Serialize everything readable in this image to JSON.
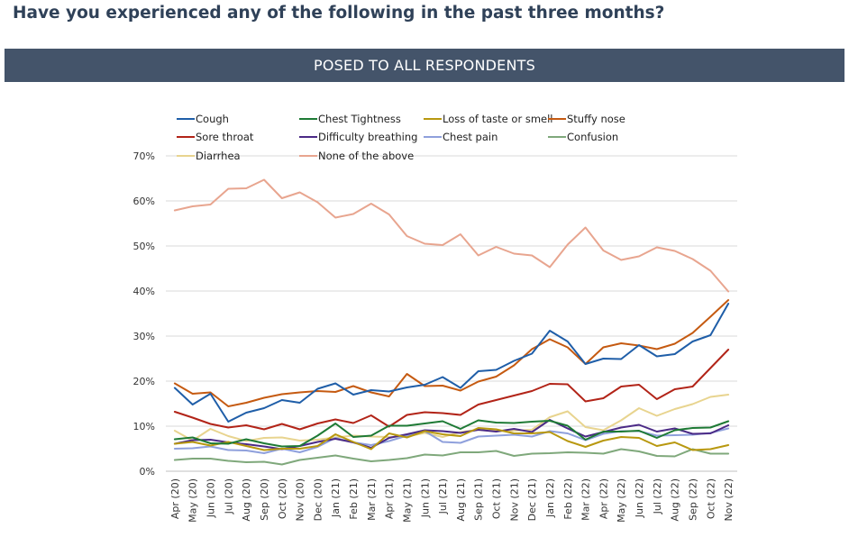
{
  "page": {
    "title": "Have you experienced any of the following in the past three months?",
    "banner": "POSED TO ALL RESPONDENTS"
  },
  "chart_data": {
    "type": "line",
    "title": "",
    "xlabel": "",
    "ylabel": "",
    "ylim": [
      0,
      70
    ],
    "yticks": [
      "0%",
      "10%",
      "20%",
      "30%",
      "40%",
      "50%",
      "60%",
      "70%"
    ],
    "grid": "horizontal",
    "legend_position": "top",
    "x": [
      "Apr (20)",
      "May (20)",
      "Jun (20)",
      "Jul (20)",
      "Aug (20)",
      "Sep (20)",
      "Oct (20)",
      "Nov (20)",
      "Dec (20)",
      "Jan (21)",
      "Feb (21)",
      "Mar (21)",
      "Apr (21)",
      "May (21)",
      "Jun (21)",
      "Jul (21)",
      "Aug (21)",
      "Sep (21)",
      "Oct (21)",
      "Nov (21)",
      "Dec (21)",
      "Jan (22)",
      "Feb (22)",
      "Mar (22)",
      "Apr (22)",
      "May (22)",
      "Jun (22)",
      "Jul (22)",
      "Aug (22)",
      "Sep (22)",
      "Oct (22)",
      "Nov (22)"
    ],
    "series": [
      {
        "name": "Cough",
        "color": "#1f5ea8",
        "values": [
          18.5,
          14.8,
          17.2,
          11,
          13,
          14,
          15.8,
          15.2,
          18.3,
          19.5,
          17,
          18,
          17.7,
          18.6,
          19.2,
          20.9,
          18.5,
          22.2,
          22.5,
          24.5,
          26.1,
          31.2,
          28.8,
          23.8,
          25,
          24.9,
          28,
          25.5,
          26,
          28.8,
          30.2,
          37.2
        ]
      },
      {
        "name": "Chest Tightness",
        "color": "#1e7a35",
        "values": [
          7.1,
          7.5,
          6.2,
          6.1,
          7.1,
          6.2,
          5.5,
          5.6,
          7.9,
          10.6,
          7.6,
          7.9,
          10.1,
          10.1,
          10.6,
          11.1,
          9.4,
          11.3,
          10.8,
          10.7,
          11,
          11.2,
          10.1,
          7,
          8.8,
          8.8,
          9,
          7.4,
          9.1,
          9.6,
          9.7,
          11.1
        ]
      },
      {
        "name": "Loss of taste or smell",
        "color": "#b8980f",
        "values": [
          6.1,
          6.5,
          5.7,
          6.5,
          5.6,
          4.7,
          5,
          5,
          5.6,
          8.2,
          6.5,
          4.9,
          8.4,
          7.5,
          8.9,
          8.2,
          7.8,
          9.6,
          9.3,
          8.4,
          8.4,
          8.7,
          6.7,
          5.4,
          6.8,
          7.6,
          7.4,
          5.6,
          6.4,
          4.7,
          4.9,
          5.8
        ]
      },
      {
        "name": "Stuffy nose",
        "color": "#c55a11",
        "values": [
          19.5,
          17.2,
          17.5,
          14.4,
          15.2,
          16.3,
          17.1,
          17.5,
          17.8,
          17.6,
          18.9,
          17.5,
          16.6,
          21.6,
          18.9,
          19,
          17.9,
          19.9,
          21,
          23.5,
          27.1,
          29.3,
          27.5,
          23.8,
          27.5,
          28.4,
          27.9,
          27.1,
          28.3,
          30.7,
          34.3,
          38
        ]
      },
      {
        "name": "Sore throat",
        "color": "#b22418",
        "values": [
          13.2,
          11.9,
          10.5,
          9.7,
          10.2,
          9.3,
          10.5,
          9.3,
          10.6,
          11.5,
          10.7,
          12.4,
          9.9,
          12.5,
          13.1,
          12.9,
          12.5,
          14.8,
          15.8,
          16.8,
          17.8,
          19.4,
          19.3,
          15.5,
          16.2,
          18.8,
          19.2,
          16,
          18.2,
          18.8,
          22.9,
          27
        ]
      },
      {
        "name": "Difficulty breathing",
        "color": "#4b2a86",
        "values": [
          6.1,
          6.9,
          7,
          6.4,
          6,
          5.5,
          4.9,
          5.6,
          6.5,
          7.2,
          6.4,
          5.2,
          7.4,
          8.2,
          9.1,
          8.9,
          8.5,
          9.2,
          8.8,
          9.4,
          8.7,
          11.4,
          9.5,
          7.7,
          8.7,
          9.7,
          10.3,
          8.8,
          9.5,
          8.3,
          8.4,
          10.2
        ]
      },
      {
        "name": "Chest pain",
        "color": "#8fa0dc",
        "values": [
          5,
          5.1,
          5.5,
          4.7,
          4.6,
          4,
          5,
          4.2,
          5.4,
          7.4,
          6.4,
          5.8,
          6.7,
          7.9,
          8.9,
          6.5,
          6.3,
          7.7,
          7.9,
          8.1,
          7.7,
          8.9,
          8.4,
          6.9,
          8.3,
          8.9,
          8.9,
          7.9,
          8,
          8.1,
          8.5,
          9.5
        ]
      },
      {
        "name": "Confusion",
        "color": "#7fa87b",
        "values": [
          2.5,
          2.8,
          2.8,
          2.3,
          2,
          2.1,
          1.5,
          2.5,
          3,
          3.5,
          2.8,
          2.2,
          2.5,
          2.9,
          3.7,
          3.5,
          4.2,
          4.2,
          4.5,
          3.4,
          3.9,
          4,
          4.2,
          4.1,
          3.9,
          4.9,
          4.4,
          3.4,
          3.3,
          4.9,
          3.9,
          3.9
        ]
      },
      {
        "name": "Diarrhea",
        "color": "#e8d48f",
        "values": [
          9,
          6.8,
          9.4,
          7.8,
          6.7,
          7.4,
          7.5,
          6.8,
          7,
          7.5,
          7.9,
          7.7,
          7.6,
          7.7,
          8.5,
          7.6,
          8.7,
          9.2,
          8.9,
          9,
          9.2,
          12,
          13.3,
          9.8,
          9.1,
          11.3,
          14,
          12.3,
          13.8,
          14.9,
          16.5,
          17
        ]
      },
      {
        "name": "None of the above",
        "color": "#e8a58f",
        "values": [
          57.9,
          58.8,
          59.2,
          62.7,
          62.8,
          64.7,
          60.6,
          61.9,
          59.7,
          56.3,
          57.1,
          59.4,
          57,
          52.2,
          50.5,
          50.2,
          52.6,
          47.9,
          49.8,
          48.3,
          47.9,
          45.3,
          50.3,
          54.1,
          49,
          46.9,
          47.7,
          49.7,
          48.9,
          47.1,
          44.5,
          39.9
        ]
      }
    ]
  }
}
